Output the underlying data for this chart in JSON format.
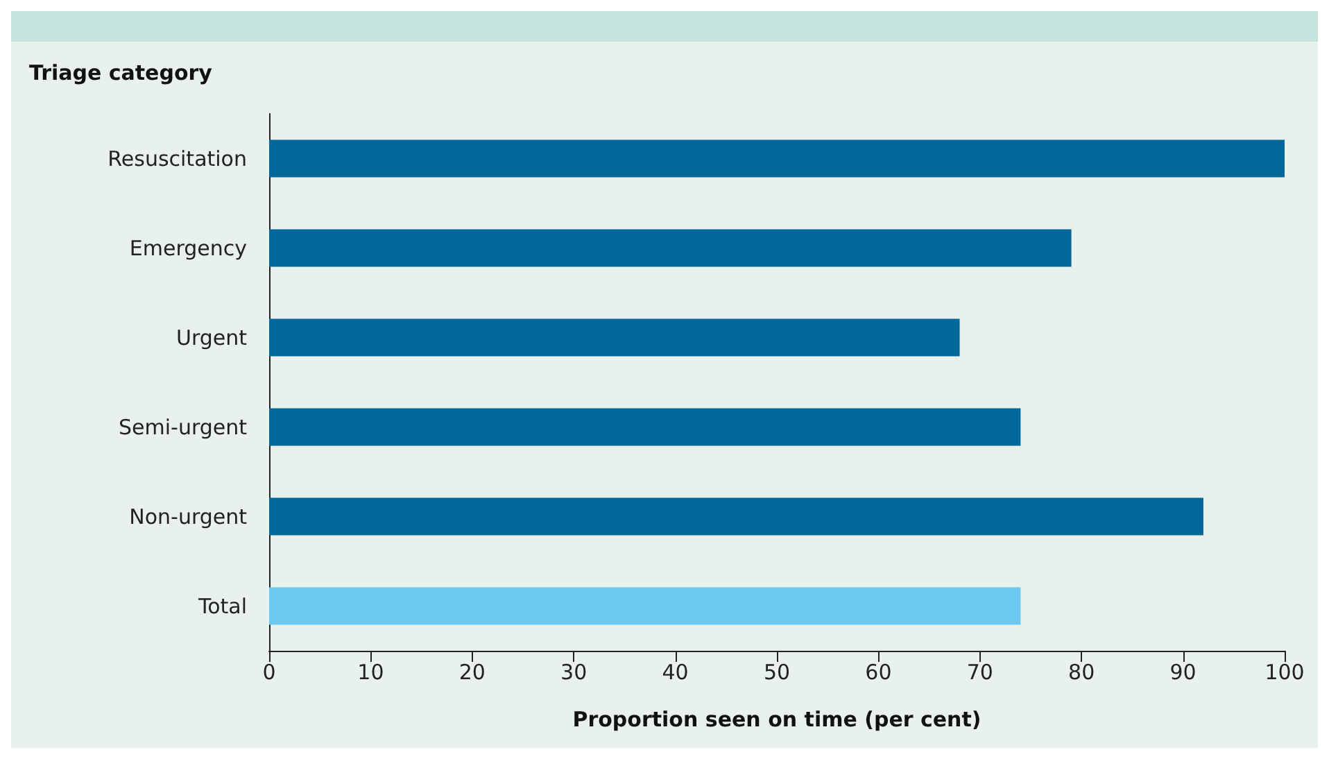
{
  "chart_data": {
    "type": "bar",
    "orientation": "horizontal",
    "ylabel": "Triage category",
    "xlabel": "Proportion seen on time (per cent)",
    "categories": [
      "Resuscitation",
      "Emergency",
      "Urgent",
      "Semi-urgent",
      "Non-urgent",
      "Total"
    ],
    "values": [
      100,
      79,
      68,
      74,
      92,
      74
    ],
    "colors": [
      "#00679a",
      "#00679a",
      "#00679a",
      "#00679a",
      "#00679a",
      "#6cc8ef"
    ],
    "xlim": [
      0,
      100
    ],
    "xticks": [
      0,
      10,
      20,
      30,
      40,
      50,
      60,
      70,
      80,
      90,
      100
    ],
    "grid": false
  }
}
